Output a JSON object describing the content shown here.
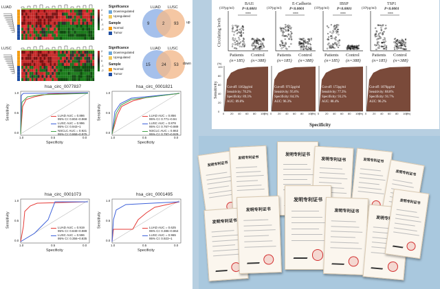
{
  "left": {
    "heatmaps": [
      {
        "cohort": "LUAD",
        "legend_title": "Significance",
        "legend_items": [
          "Downregulated",
          "Upregulated"
        ],
        "scale": [
          "2",
          "1",
          "0",
          "-1",
          "-2"
        ],
        "sample_title": "Sample",
        "sample_items": [
          "Normal",
          "Tumor"
        ]
      },
      {
        "cohort": "LUSC",
        "legend_title": "Significance",
        "legend_items": [
          "Downregulated",
          "Upregulated"
        ],
        "scale": [
          "2",
          "1",
          "0",
          "-1",
          "-2"
        ],
        "sample_title": "Sample",
        "sample_items": [
          "Normal",
          "Tumor"
        ]
      }
    ],
    "venns": [
      {
        "a": "LUAD",
        "b": "LUSC",
        "left": "9",
        "mid": "2",
        "right": "93",
        "dir": "up"
      },
      {
        "a": "LUAD",
        "b": "LUSC",
        "left": "15",
        "mid": "24",
        "right": "53",
        "dir": "down"
      }
    ],
    "rocs": [
      {
        "title": "hsa_circ_0077837",
        "entries": [
          [
            "LUAD AUC = 0.886",
            "95% CI: 0.804~0.968"
          ],
          [
            "LUSC AUC = 0.996",
            "95% CI: 0.943~1"
          ],
          [
            "NSCLC AUC = 0.921",
            "95% CI: 0.868~0.975"
          ]
        ]
      },
      {
        "title": "hsa_circ_0001821",
        "entries": [
          [
            "LUAD AUC = 0.856",
            "95% CI: 0.771~0.94"
          ],
          [
            "LUSC AUC = 0.878",
            "95% CI: 0.767~0.989"
          ],
          [
            "NSCLC AUC = 0.863",
            "95% CI: 0.797~0.929"
          ]
        ]
      },
      {
        "title": "hsa_circ_0001073",
        "entries": [
          [
            "LUAD AUC = 0.919",
            "95% CI: 0.849~0.989"
          ],
          [
            "LUSC AUC = 0.596",
            "95% CI: 0.356~0.835"
          ]
        ]
      },
      {
        "title": "hsa_circ_0001495",
        "entries": [
          [
            "LUAD AUC = 0.625",
            "95% CI: 0.386~0.864"
          ],
          [
            "LUSC AUC = 0.965",
            "95% CI: 0.923~1"
          ]
        ]
      }
    ],
    "roc_axes": {
      "x": "Specificity",
      "y": "Sensitivity",
      "xt": [
        "1.0",
        "0.5",
        "0.0"
      ],
      "yt": [
        "1.0",
        "0.5",
        "0.0"
      ]
    }
  },
  "markers": {
    "ylabel": "Circulating levels",
    "xlabel": "Specificity",
    "roc_ylabel": "Sensitivity",
    "panels": [
      {
        "unit": "(10³pg/ml)",
        "name": "BAI1",
        "p": "P<0.0001",
        "stars": "****",
        "g1": "Patients",
        "n1": "(n=185)",
        "g2": "Control",
        "n2": "(n=388)",
        "cutoff": "Cut-off: 1162pg/ml",
        "sens": "Sensitivity: 70.2%",
        "spec": "Specificity: 89.3%",
        "auc": "AUC: 89.8%"
      },
      {
        "unit": "(10³pg/ml)",
        "name": "E-Cadherin",
        "p": "P<0.0001",
        "stars": "****",
        "g1": "Patients",
        "n1": "(n=185)",
        "g2": "Control",
        "n2": "(n=388)",
        "cutoff": "Cut-off: 9715pg/ml",
        "sens": "Sensitivity: 95.6%",
        "spec": "Specificity: 84.3%",
        "auc": "AUC: 96.3%"
      },
      {
        "unit": "(10³pg/ml)",
        "name": "IBSP",
        "p": "P<0.0001",
        "stars": "****",
        "g1": "Patients",
        "n1": "(n=185)",
        "g2": "Control",
        "n2": "(n=388)",
        "cutoff": "Cut-off: 172pg/ml",
        "sens": "Sensitivity: 77.3%",
        "spec": "Specificity: 93.2%",
        "auc": "AUC: 88.4%"
      },
      {
        "unit": "(10³pg/ml)",
        "name": "TSP1",
        "p": "P<0.0001",
        "stars": "****",
        "g1": "Patients",
        "n1": "(n=185)",
        "g2": "Control",
        "n2": "(n=388)",
        "cutoff": "Cut-off: 1076pg/ml",
        "sens": "Sensitivity: 88.8%",
        "spec": "Specificity: 91.7%",
        "auc": "AUC: 96.2%"
      }
    ],
    "ticks": [
      "0",
      "20",
      "40",
      "60",
      "80",
      "100"
    ],
    "pct": "(%)"
  },
  "certificates": {
    "title": "发明专利证书"
  }
}
